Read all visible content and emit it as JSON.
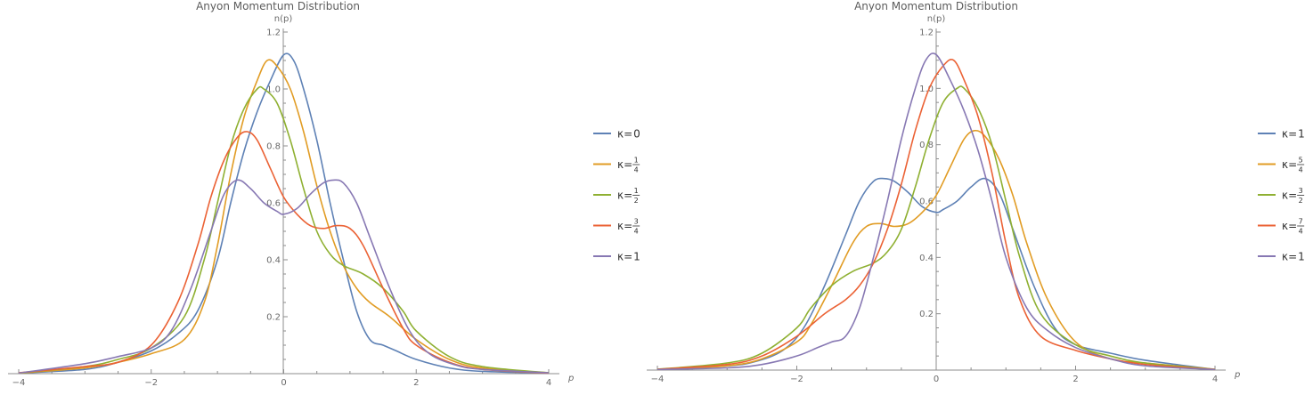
{
  "chart_data": [
    {
      "type": "line",
      "title": "Anyon Momentum Distribution",
      "xlabel": "p",
      "ylabel": "n(p)",
      "xlim": [
        -4,
        4
      ],
      "ylim": [
        0,
        1.2
      ],
      "xticks": [
        "-4",
        "-2",
        "0",
        "2",
        "4"
      ],
      "yticks": [
        "0.2",
        "0.4",
        "0.6",
        "0.8",
        "1.0",
        "1.2"
      ],
      "grid": false,
      "legend_position": "right",
      "series": [
        {
          "name": "κ=0",
          "legend": {
            "lhs": "κ=",
            "plain": "0"
          },
          "color": "#5E81B5",
          "points": [
            [
              -4,
              0.002
            ],
            [
              -3,
              0.015
            ],
            [
              -2.5,
              0.04
            ],
            [
              -2,
              0.08
            ],
            [
              -1.6,
              0.14
            ],
            [
              -1.3,
              0.22
            ],
            [
              -1,
              0.4
            ],
            [
              -0.8,
              0.6
            ],
            [
              -0.6,
              0.78
            ],
            [
              -0.4,
              0.92
            ],
            [
              -0.2,
              1.03
            ],
            [
              0,
              1.12
            ],
            [
              0.15,
              1.1
            ],
            [
              0.3,
              1.0
            ],
            [
              0.5,
              0.82
            ],
            [
              0.7,
              0.6
            ],
            [
              0.9,
              0.4
            ],
            [
              1.1,
              0.22
            ],
            [
              1.3,
              0.12
            ],
            [
              1.5,
              0.1
            ],
            [
              1.7,
              0.08
            ],
            [
              2,
              0.05
            ],
            [
              2.5,
              0.02
            ],
            [
              3,
              0.008
            ],
            [
              4,
              0.002
            ]
          ]
        },
        {
          "name": "κ=1/4",
          "legend": {
            "lhs": "κ=",
            "num": "1",
            "den": "4"
          },
          "color": "#E19C24",
          "points": [
            [
              -4,
              0.002
            ],
            [
              -3,
              0.02
            ],
            [
              -2.5,
              0.04
            ],
            [
              -2,
              0.07
            ],
            [
              -1.5,
              0.12
            ],
            [
              -1.2,
              0.25
            ],
            [
              -1,
              0.45
            ],
            [
              -0.8,
              0.7
            ],
            [
              -0.6,
              0.9
            ],
            [
              -0.4,
              1.03
            ],
            [
              -0.25,
              1.1
            ],
            [
              -0.1,
              1.08
            ],
            [
              0.1,
              1.0
            ],
            [
              0.3,
              0.85
            ],
            [
              0.5,
              0.66
            ],
            [
              0.7,
              0.5
            ],
            [
              0.9,
              0.38
            ],
            [
              1.1,
              0.3
            ],
            [
              1.3,
              0.25
            ],
            [
              1.6,
              0.2
            ],
            [
              2,
              0.12
            ],
            [
              2.5,
              0.05
            ],
            [
              3,
              0.02
            ],
            [
              4,
              0.003
            ]
          ]
        },
        {
          "name": "κ=1/2",
          "legend": {
            "lhs": "κ=",
            "num": "1",
            "den": "2"
          },
          "color": "#8FB032",
          "points": [
            [
              -4,
              0.002
            ],
            [
              -3,
              0.025
            ],
            [
              -2.5,
              0.05
            ],
            [
              -2,
              0.09
            ],
            [
              -1.5,
              0.2
            ],
            [
              -1.2,
              0.4
            ],
            [
              -1,
              0.6
            ],
            [
              -0.8,
              0.8
            ],
            [
              -0.6,
              0.93
            ],
            [
              -0.4,
              1.0
            ],
            [
              -0.3,
              1.0
            ],
            [
              -0.1,
              0.95
            ],
            [
              0.1,
              0.82
            ],
            [
              0.3,
              0.65
            ],
            [
              0.5,
              0.5
            ],
            [
              0.7,
              0.42
            ],
            [
              0.9,
              0.38
            ],
            [
              1.2,
              0.35
            ],
            [
              1.5,
              0.3
            ],
            [
              1.8,
              0.22
            ],
            [
              2,
              0.15
            ],
            [
              2.5,
              0.06
            ],
            [
              3,
              0.025
            ],
            [
              4,
              0.003
            ]
          ]
        },
        {
          "name": "κ=3/4",
          "legend": {
            "lhs": "κ=",
            "num": "3",
            "den": "4"
          },
          "color": "#EB6235",
          "points": [
            [
              -4,
              0.003
            ],
            [
              -3,
              0.025
            ],
            [
              -2.5,
              0.04
            ],
            [
              -2,
              0.1
            ],
            [
              -1.6,
              0.25
            ],
            [
              -1.3,
              0.45
            ],
            [
              -1.1,
              0.62
            ],
            [
              -0.9,
              0.75
            ],
            [
              -0.7,
              0.83
            ],
            [
              -0.55,
              0.85
            ],
            [
              -0.4,
              0.82
            ],
            [
              -0.2,
              0.72
            ],
            [
              0,
              0.62
            ],
            [
              0.2,
              0.56
            ],
            [
              0.4,
              0.52
            ],
            [
              0.6,
              0.51
            ],
            [
              0.8,
              0.52
            ],
            [
              1,
              0.51
            ],
            [
              1.2,
              0.45
            ],
            [
              1.5,
              0.3
            ],
            [
              1.8,
              0.16
            ],
            [
              2,
              0.1
            ],
            [
              2.5,
              0.04
            ],
            [
              3,
              0.015
            ],
            [
              4,
              0.002
            ]
          ]
        },
        {
          "name": "κ= 1",
          "legend": {
            "lhs": "κ= ",
            "plain": "1"
          },
          "color": "#8778B3",
          "points": [
            [
              -4,
              0.002
            ],
            [
              -3,
              0.035
            ],
            [
              -2.5,
              0.06
            ],
            [
              -2,
              0.09
            ],
            [
              -1.7,
              0.15
            ],
            [
              -1.4,
              0.3
            ],
            [
              -1.1,
              0.5
            ],
            [
              -0.9,
              0.63
            ],
            [
              -0.7,
              0.68
            ],
            [
              -0.5,
              0.65
            ],
            [
              -0.3,
              0.6
            ],
            [
              -0.1,
              0.57
            ],
            [
              0,
              0.56
            ],
            [
              0.2,
              0.58
            ],
            [
              0.4,
              0.63
            ],
            [
              0.6,
              0.67
            ],
            [
              0.75,
              0.68
            ],
            [
              0.9,
              0.67
            ],
            [
              1.1,
              0.6
            ],
            [
              1.3,
              0.48
            ],
            [
              1.6,
              0.3
            ],
            [
              1.9,
              0.15
            ],
            [
              2.2,
              0.07
            ],
            [
              2.6,
              0.03
            ],
            [
              3,
              0.015
            ],
            [
              4,
              0.003
            ]
          ]
        }
      ]
    },
    {
      "type": "line",
      "title": "Anyon Momentum Distribution",
      "xlabel": "p",
      "ylabel": "n(p)",
      "xlim": [
        -4,
        4
      ],
      "ylim": [
        0,
        1.2
      ],
      "xticks": [
        "-4",
        "-2",
        "0",
        "2",
        "4"
      ],
      "yticks": [
        "0.2",
        "0.4",
        "0.6",
        "0.8",
        "1.0",
        "1.2"
      ],
      "grid": false,
      "legend_position": "right",
      "series": [
        {
          "name": "κ=1",
          "legend": {
            "lhs": "κ=",
            "plain": "1"
          },
          "color": "#5E81B5",
          "points": [
            [
              -4,
              0.003
            ],
            [
              -3,
              0.015
            ],
            [
              -2.6,
              0.03
            ],
            [
              -2.2,
              0.07
            ],
            [
              -1.9,
              0.15
            ],
            [
              -1.6,
              0.3
            ],
            [
              -1.3,
              0.48
            ],
            [
              -1.1,
              0.6
            ],
            [
              -0.9,
              0.67
            ],
            [
              -0.75,
              0.68
            ],
            [
              -0.6,
              0.67
            ],
            [
              -0.4,
              0.63
            ],
            [
              -0.2,
              0.58
            ],
            [
              0,
              0.56
            ],
            [
              0.1,
              0.57
            ],
            [
              0.3,
              0.6
            ],
            [
              0.5,
              0.65
            ],
            [
              0.7,
              0.68
            ],
            [
              0.9,
              0.63
            ],
            [
              1.1,
              0.5
            ],
            [
              1.4,
              0.3
            ],
            [
              1.7,
              0.15
            ],
            [
              2,
              0.09
            ],
            [
              2.5,
              0.06
            ],
            [
              3,
              0.035
            ],
            [
              4,
              0.002
            ]
          ]
        },
        {
          "name": "κ=5/4",
          "legend": {
            "lhs": "κ=",
            "num": "5",
            "den": "4"
          },
          "color": "#E19C24",
          "points": [
            [
              -4,
              0.002
            ],
            [
              -3,
              0.015
            ],
            [
              -2.5,
              0.04
            ],
            [
              -2,
              0.1
            ],
            [
              -1.8,
              0.16
            ],
            [
              -1.5,
              0.3
            ],
            [
              -1.2,
              0.45
            ],
            [
              -1,
              0.51
            ],
            [
              -0.8,
              0.52
            ],
            [
              -0.6,
              0.51
            ],
            [
              -0.4,
              0.52
            ],
            [
              -0.2,
              0.56
            ],
            [
              0,
              0.62
            ],
            [
              0.2,
              0.72
            ],
            [
              0.4,
              0.82
            ],
            [
              0.55,
              0.85
            ],
            [
              0.7,
              0.83
            ],
            [
              0.9,
              0.75
            ],
            [
              1.1,
              0.62
            ],
            [
              1.3,
              0.45
            ],
            [
              1.6,
              0.25
            ],
            [
              2,
              0.1
            ],
            [
              2.5,
              0.04
            ],
            [
              3,
              0.025
            ],
            [
              4,
              0.003
            ]
          ]
        },
        {
          "name": "κ=3/2",
          "legend": {
            "lhs": "κ=",
            "num": "3",
            "den": "2"
          },
          "color": "#8FB032",
          "points": [
            [
              -4,
              0.003
            ],
            [
              -3,
              0.025
            ],
            [
              -2.5,
              0.06
            ],
            [
              -2,
              0.15
            ],
            [
              -1.8,
              0.22
            ],
            [
              -1.5,
              0.3
            ],
            [
              -1.2,
              0.35
            ],
            [
              -0.9,
              0.38
            ],
            [
              -0.7,
              0.42
            ],
            [
              -0.5,
              0.5
            ],
            [
              -0.3,
              0.65
            ],
            [
              -0.1,
              0.82
            ],
            [
              0.1,
              0.95
            ],
            [
              0.3,
              1.0
            ],
            [
              0.4,
              1.0
            ],
            [
              0.6,
              0.93
            ],
            [
              0.8,
              0.8
            ],
            [
              1,
              0.6
            ],
            [
              1.2,
              0.4
            ],
            [
              1.5,
              0.2
            ],
            [
              2,
              0.09
            ],
            [
              2.5,
              0.05
            ],
            [
              3,
              0.025
            ],
            [
              4,
              0.002
            ]
          ]
        },
        {
          "name": "κ=7/4",
          "legend": {
            "lhs": "κ=",
            "num": "7",
            "den": "4"
          },
          "color": "#EB6235",
          "points": [
            [
              -4,
              0.003
            ],
            [
              -3,
              0.02
            ],
            [
              -2.5,
              0.05
            ],
            [
              -2,
              0.12
            ],
            [
              -1.6,
              0.2
            ],
            [
              -1.3,
              0.25
            ],
            [
              -1.1,
              0.3
            ],
            [
              -0.9,
              0.38
            ],
            [
              -0.7,
              0.5
            ],
            [
              -0.5,
              0.66
            ],
            [
              -0.3,
              0.85
            ],
            [
              -0.1,
              1.0
            ],
            [
              0.1,
              1.08
            ],
            [
              0.25,
              1.1
            ],
            [
              0.4,
              1.03
            ],
            [
              0.6,
              0.9
            ],
            [
              0.8,
              0.7
            ],
            [
              1,
              0.45
            ],
            [
              1.2,
              0.25
            ],
            [
              1.5,
              0.12
            ],
            [
              2,
              0.07
            ],
            [
              2.5,
              0.04
            ],
            [
              3,
              0.02
            ],
            [
              4,
              0.002
            ]
          ]
        },
        {
          "name": "κ= 1",
          "legend": {
            "lhs": "κ= ",
            "plain": "1"
          },
          "color": "#8778B3",
          "points": [
            [
              -4,
              0.002
            ],
            [
              -3,
              0.008
            ],
            [
              -2.5,
              0.02
            ],
            [
              -2,
              0.05
            ],
            [
              -1.7,
              0.08
            ],
            [
              -1.5,
              0.1
            ],
            [
              -1.3,
              0.12
            ],
            [
              -1.1,
              0.22
            ],
            [
              -0.9,
              0.4
            ],
            [
              -0.7,
              0.6
            ],
            [
              -0.5,
              0.82
            ],
            [
              -0.3,
              1.0
            ],
            [
              -0.15,
              1.1
            ],
            [
              0,
              1.12
            ],
            [
              0.2,
              1.03
            ],
            [
              0.4,
              0.92
            ],
            [
              0.6,
              0.78
            ],
            [
              0.8,
              0.6
            ],
            [
              1,
              0.4
            ],
            [
              1.3,
              0.22
            ],
            [
              1.6,
              0.14
            ],
            [
              2,
              0.08
            ],
            [
              2.5,
              0.04
            ],
            [
              3,
              0.015
            ],
            [
              4,
              0.002
            ]
          ]
        }
      ]
    }
  ]
}
